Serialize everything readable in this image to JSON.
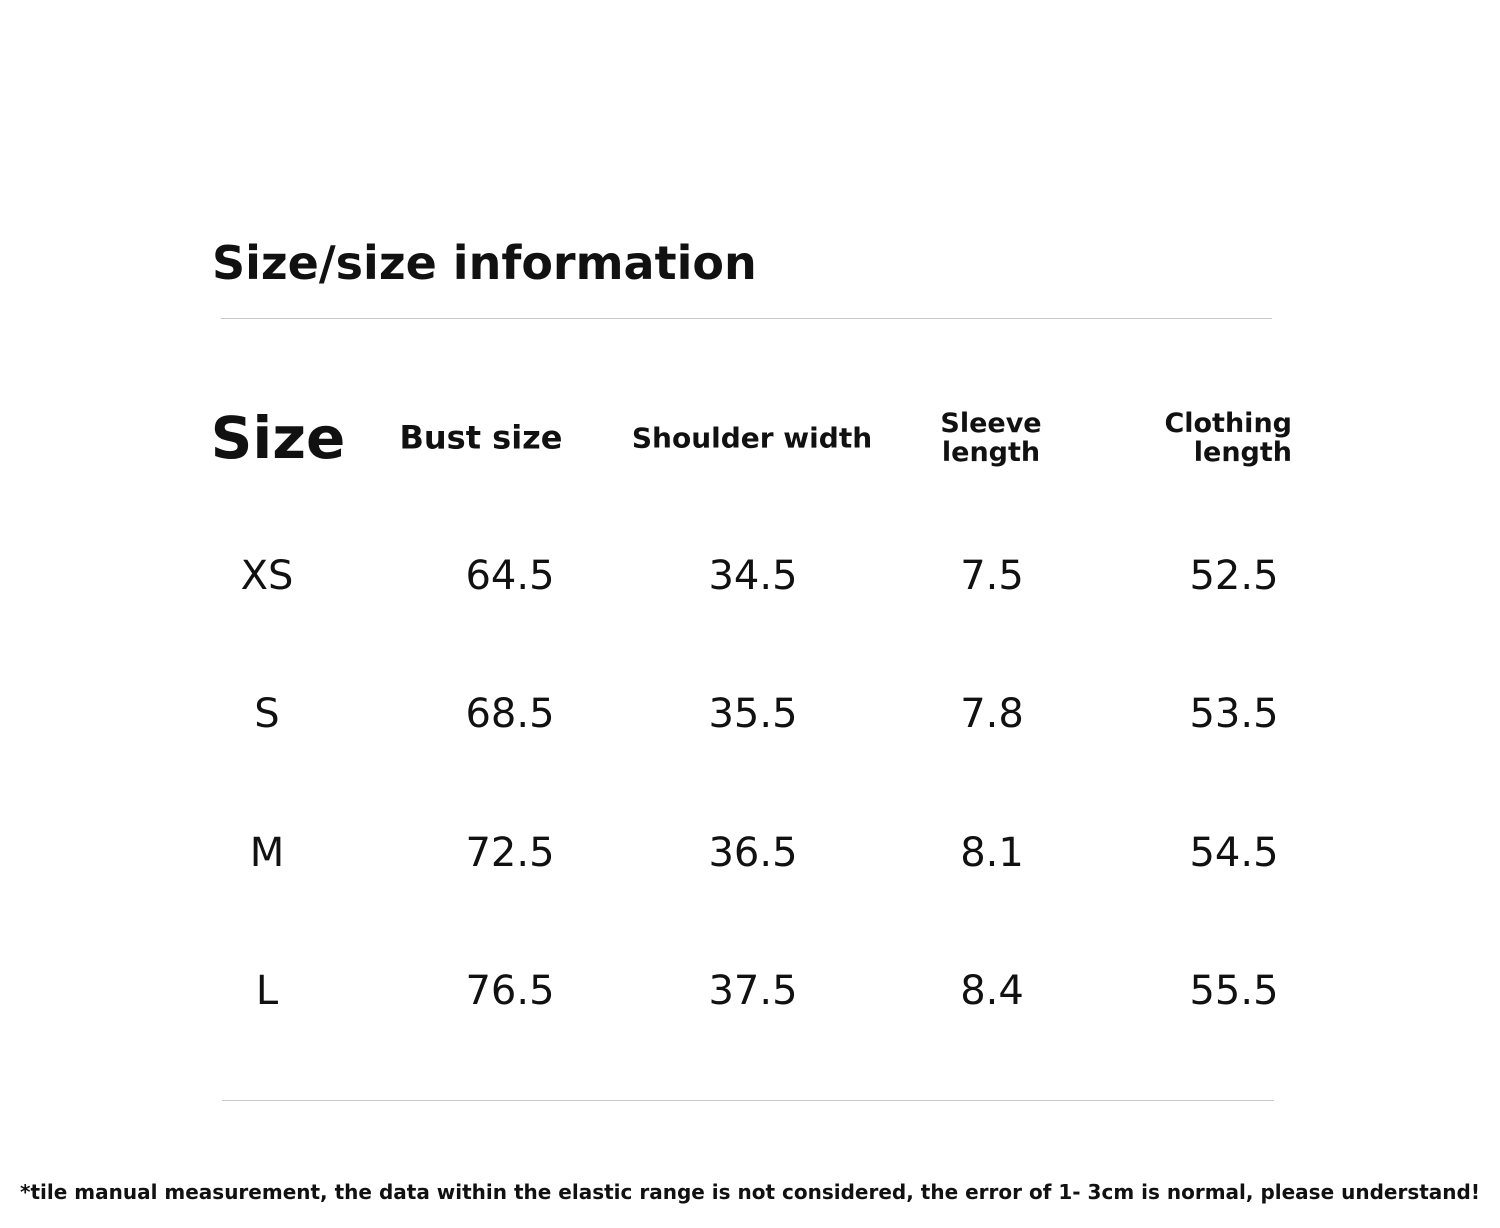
{
  "header": {
    "title": "Size/size information"
  },
  "table": {
    "columns": [
      "Size",
      "Bust size",
      "Shoulder width",
      "Sleeve length",
      "Clothing length"
    ],
    "rows": [
      [
        "XS",
        64.5,
        34.5,
        7.5,
        52.5
      ],
      [
        "S",
        68.5,
        35.5,
        7.8,
        53.5
      ],
      [
        "M",
        72.5,
        36.5,
        8.1,
        54.5
      ],
      [
        "L",
        76.5,
        37.5,
        8.4,
        55.5
      ]
    ]
  },
  "footnote": "*tile manual measurement, the data within the elastic range is not considered, the error of 1- 3cm is normal, please understand!"
}
